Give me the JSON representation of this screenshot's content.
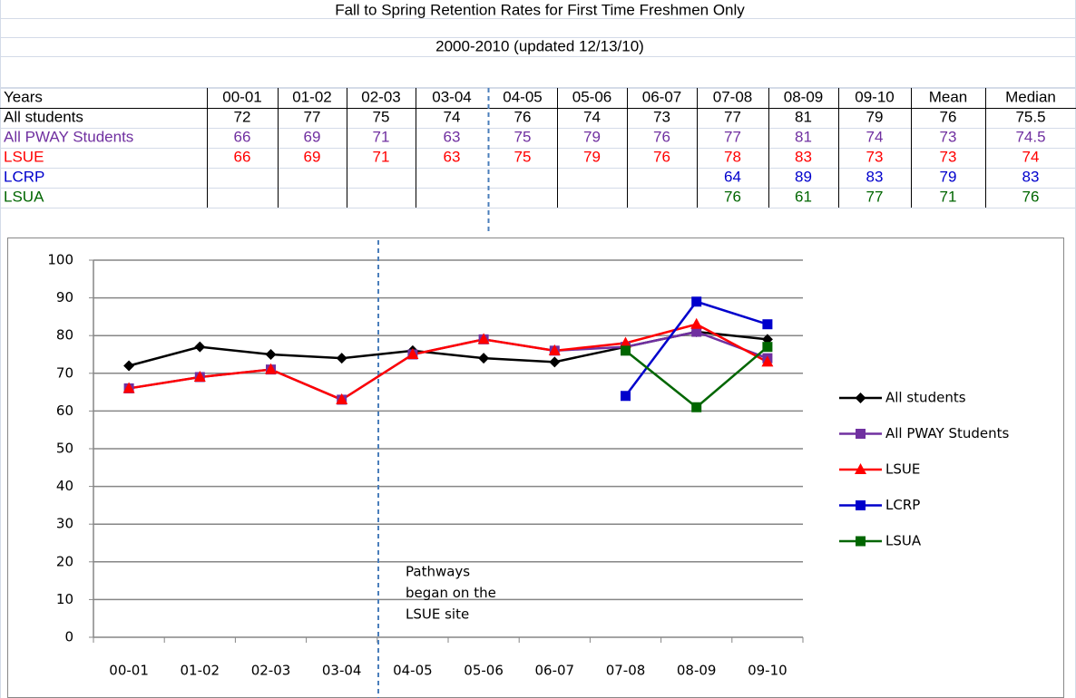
{
  "table": {
    "title": "Fall to Spring Retention Rates for First Time Freshmen Only",
    "subtitle": "2000-2010 (updated 12/13/10)",
    "header": [
      "Years",
      "00-01",
      "01-02",
      "02-03",
      "03-04",
      "04-05",
      "05-06",
      "06-07",
      "07-08",
      "08-09",
      "09-10",
      "Mean",
      "Median"
    ],
    "rows": [
      {
        "label": "All students",
        "color": "#000000",
        "values": [
          72,
          77,
          75,
          74,
          76,
          74,
          73,
          77,
          81,
          79,
          76,
          75.5
        ]
      },
      {
        "label": "All PWAY Students",
        "color": "#7030a0",
        "values": [
          66,
          69,
          71,
          63,
          75,
          79,
          76,
          77,
          81,
          74,
          73,
          74.5
        ]
      },
      {
        "label": "LSUE",
        "color": "#ff0000",
        "values": [
          66,
          69,
          71,
          63,
          75,
          79,
          76,
          78,
          83,
          73,
          73,
          74
        ]
      },
      {
        "label": "LCRP",
        "color": "#0000cc",
        "values": [
          null,
          null,
          null,
          null,
          null,
          null,
          null,
          64,
          89,
          83,
          79,
          83
        ]
      },
      {
        "label": "LSUA",
        "color": "#006600",
        "values": [
          null,
          null,
          null,
          null,
          null,
          null,
          null,
          76,
          61,
          77,
          71,
          76
        ]
      }
    ]
  },
  "chart_data": {
    "type": "line",
    "categories": [
      "00-01",
      "01-02",
      "02-03",
      "03-04",
      "04-05",
      "05-06",
      "06-07",
      "07-08",
      "08-09",
      "09-10"
    ],
    "series": [
      {
        "name": "All students",
        "color": "#000000",
        "marker": "diamond",
        "values": [
          72,
          77,
          75,
          74,
          76,
          74,
          73,
          77,
          81,
          79
        ]
      },
      {
        "name": "All PWAY Students",
        "color": "#7030a0",
        "marker": "square",
        "values": [
          66,
          69,
          71,
          63,
          75,
          79,
          76,
          77,
          81,
          74
        ]
      },
      {
        "name": "LSUE",
        "color": "#ff0000",
        "marker": "triangle",
        "values": [
          66,
          69,
          71,
          63,
          75,
          79,
          76,
          78,
          83,
          73
        ]
      },
      {
        "name": "LCRP",
        "color": "#0000cc",
        "marker": "square",
        "values": [
          null,
          null,
          null,
          null,
          null,
          null,
          null,
          64,
          89,
          83
        ]
      },
      {
        "name": "LSUA",
        "color": "#006600",
        "marker": "square",
        "values": [
          null,
          null,
          null,
          null,
          null,
          null,
          null,
          76,
          61,
          77
        ]
      }
    ],
    "ylim": [
      0,
      100
    ],
    "yticks": [
      0,
      10,
      20,
      30,
      40,
      50,
      60,
      70,
      80,
      90,
      100
    ],
    "grid": true,
    "legend": "right",
    "annotation": [
      "Pathways",
      "began on the",
      "LSUE site"
    ]
  }
}
